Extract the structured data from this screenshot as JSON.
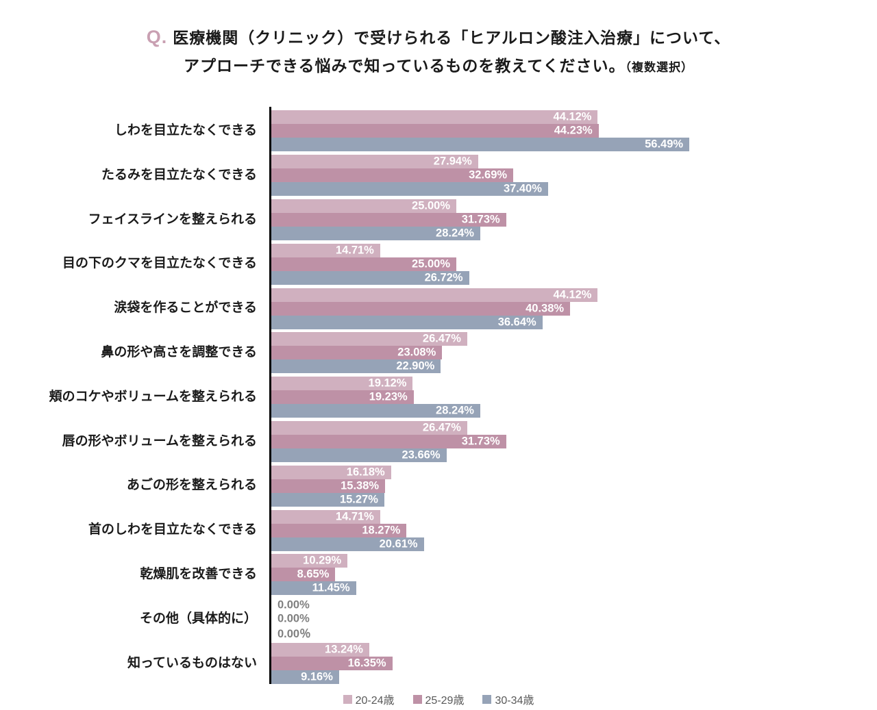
{
  "title": {
    "q_prefix": "Q.",
    "line1": "医療機関（クリニック）で受けられる「ヒアルロン酸注入治療」について、",
    "line2_main": "アプローチできる悩みで知っているものを教えてください。",
    "line2_note": "（複数選択）"
  },
  "colors": {
    "q_accent": "#C9A0B2",
    "title_text": "#1a1a1a",
    "axis": "#000000",
    "value_label": "#ffffff",
    "zero_label": "#7f7f7f",
    "legend_text": "#595959",
    "series_20_24": "#D0B0BF",
    "series_25_29": "#BE91A6",
    "series_30_34": "#96A3B7"
  },
  "chart_data": {
    "type": "bar",
    "orientation": "horizontal",
    "unit": "%",
    "xlim": [
      0,
      60
    ],
    "grid": false,
    "legend_position": "bottom",
    "categories": [
      "しわを目立たなくできる",
      "たるみを目立たなくできる",
      "フェイスラインを整えられる",
      "目の下のクマを目立たなくできる",
      "涙袋を作ることができる",
      "鼻の形や高さを調整できる",
      "頬のコケやボリュームを整えられる",
      "唇の形やボリュームを整えられる",
      "あごの形を整えられる",
      "首のしわを目立たなくできる",
      "乾燥肌を改善できる",
      "その他（具体的に）",
      "知っているものはない"
    ],
    "series": [
      {
        "name": "20-24歳",
        "color": "#D0B0BF",
        "values": [
          44.12,
          27.94,
          25.0,
          14.71,
          44.12,
          26.47,
          19.12,
          26.47,
          16.18,
          14.71,
          10.29,
          0.0,
          13.24
        ],
        "labels": [
          "44.12%",
          "27.94%",
          "25.00%",
          "14.71%",
          "44.12%",
          "26.47%",
          "19.12%",
          "26.47%",
          "16.18%",
          "14.71%",
          "10.29%",
          "0.00%",
          "13.24%"
        ]
      },
      {
        "name": "25-29歳",
        "color": "#BE91A6",
        "values": [
          44.23,
          32.69,
          31.73,
          25.0,
          40.38,
          23.08,
          19.23,
          31.73,
          15.38,
          18.27,
          8.65,
          0.0,
          16.35
        ],
        "labels": [
          "44.23%",
          "32.69%",
          "31.73%",
          "25.00%",
          "40.38%",
          "23.08%",
          "19.23%",
          "31.73%",
          "15.38%",
          "18.27%",
          "8.65%",
          "0.00%",
          "16.35%"
        ]
      },
      {
        "name": "30-34歳",
        "color": "#96A3B7",
        "values": [
          56.49,
          37.4,
          28.24,
          26.72,
          36.64,
          22.9,
          28.24,
          23.66,
          15.27,
          20.61,
          11.45,
          0.0,
          9.16
        ],
        "labels": [
          "56.49%",
          "37.40%",
          "28.24%",
          "26.72%",
          "36.64%",
          "22.90%",
          "28.24%",
          "23.66%",
          "15.27%",
          "20.61%",
          "11.45%",
          "0.00％",
          "9.16%"
        ]
      }
    ]
  }
}
